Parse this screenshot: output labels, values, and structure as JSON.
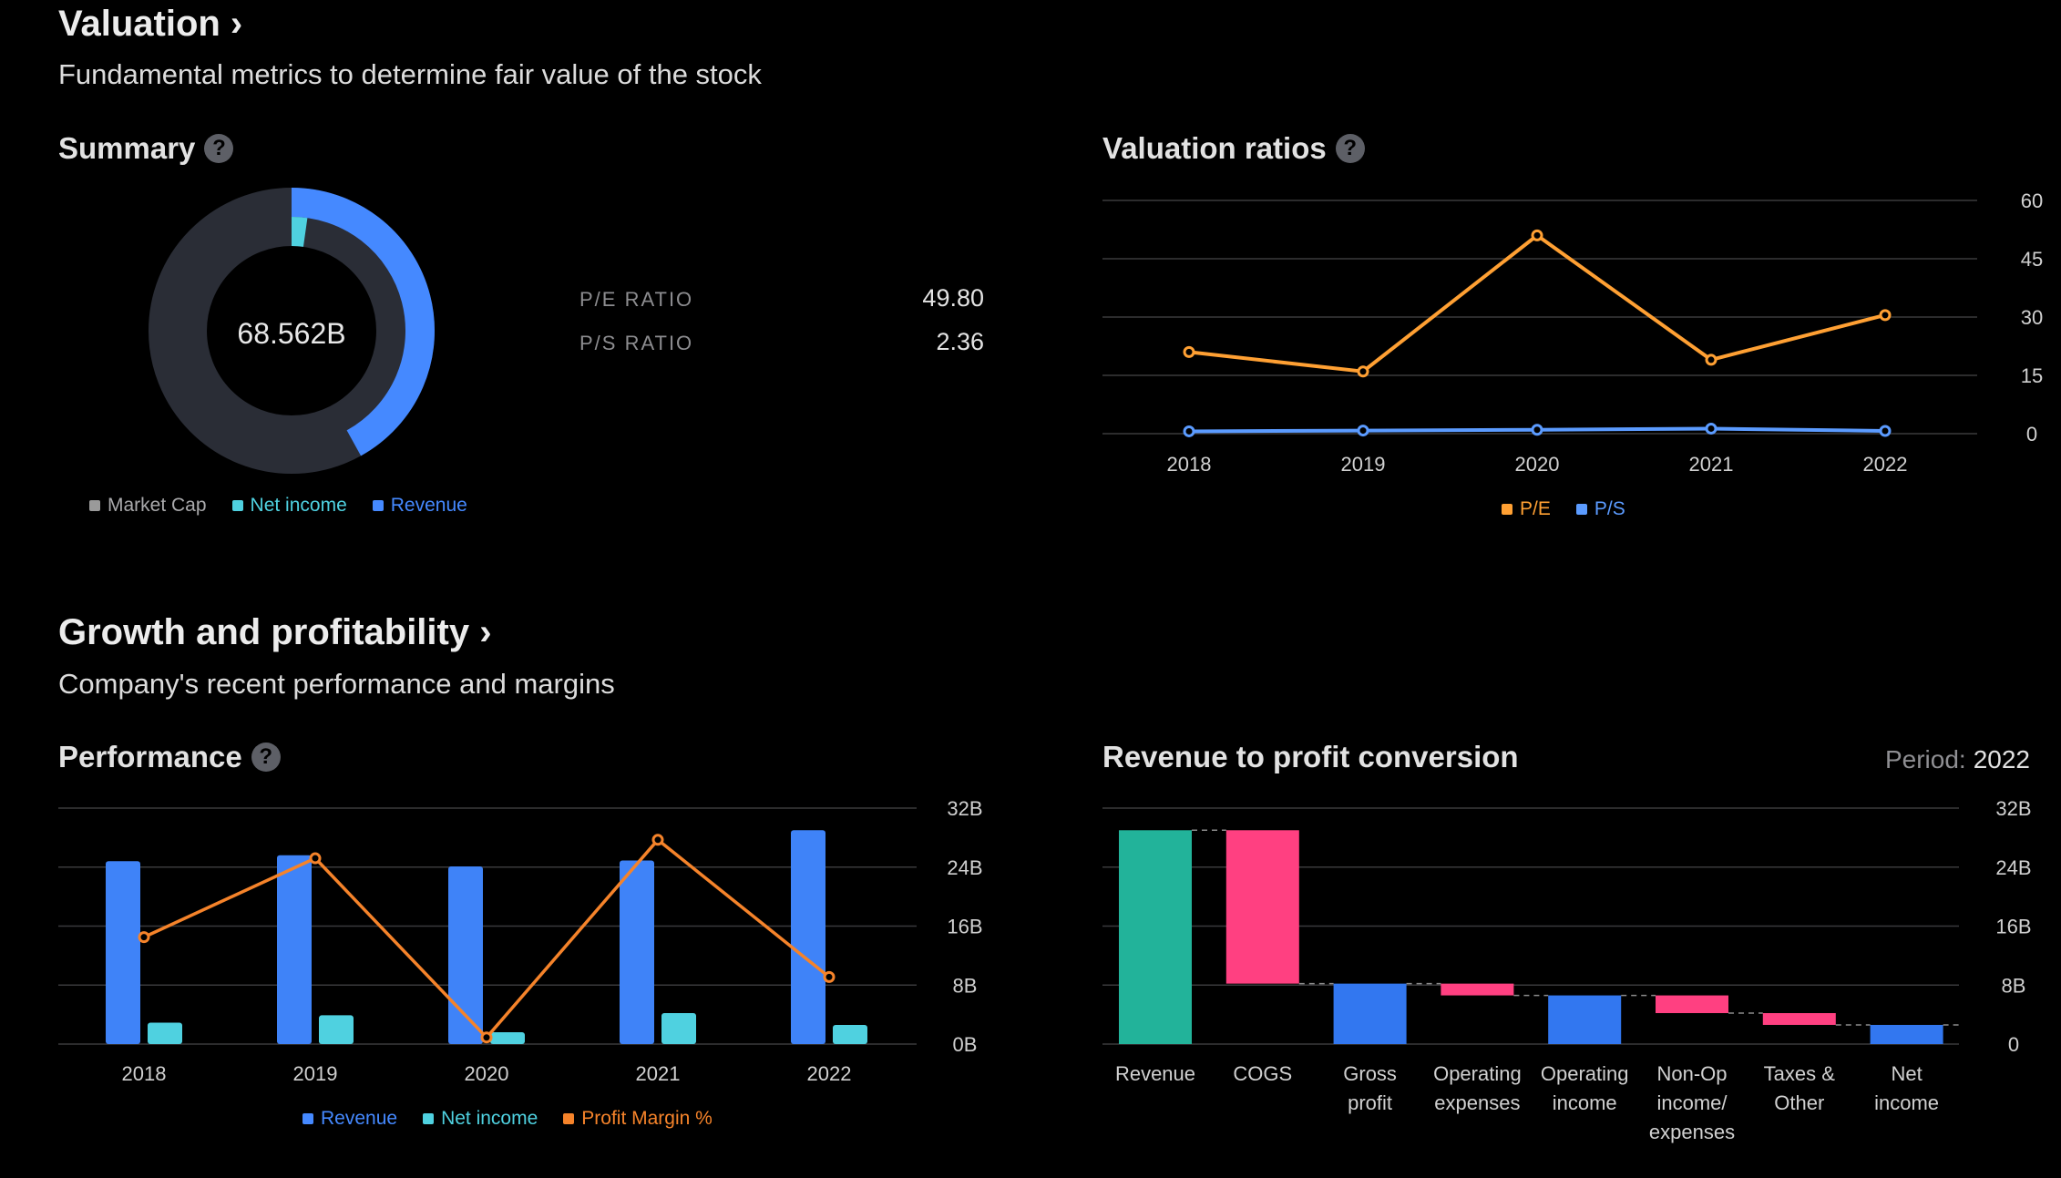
{
  "colors": {
    "market_cap": "#2a2d36",
    "revenue": "#4589ff",
    "revenue_bar": "#3f83f8",
    "net_income": "#4fd1e0",
    "pe": "#ffa033",
    "ps": "#5b9bff",
    "profit_margin": "#f5832a",
    "green": "#22b39a",
    "pink": "#ff4081",
    "grid": "#3a3a3c",
    "axis_text": "#d0d0d0"
  },
  "valuation": {
    "title": "Valuation ›",
    "subtitle": "Fundamental metrics to determine fair value of the stock"
  },
  "summary": {
    "title": "Summary",
    "help": "?",
    "center_value": "68.562B",
    "ratios": [
      {
        "label": "P/E RATIO",
        "value": "49.80"
      },
      {
        "label": "P/S RATIO",
        "value": "2.36"
      }
    ],
    "legend": [
      "Market Cap",
      "Net income",
      "Revenue"
    ]
  },
  "valuation_ratios": {
    "title": "Valuation ratios",
    "help": "?",
    "chart_data": {
      "type": "line",
      "x": [
        "2018",
        "2019",
        "2020",
        "2021",
        "2022"
      ],
      "series": [
        {
          "name": "P/E",
          "values": [
            21,
            16,
            51,
            19,
            30.5
          ]
        },
        {
          "name": "P/S",
          "values": [
            0.6,
            0.8,
            1.0,
            1.3,
            0.7
          ]
        }
      ],
      "ylim": [
        0,
        60
      ],
      "yticks": [
        "0",
        "15",
        "30",
        "45",
        "60"
      ]
    }
  },
  "growth": {
    "title": "Growth and profitability ›",
    "subtitle": "Company's recent performance and margins"
  },
  "performance": {
    "title": "Performance",
    "help": "?",
    "chart_data": {
      "type": "bar",
      "categories": [
        "2018",
        "2019",
        "2020",
        "2021",
        "2022"
      ],
      "series": [
        {
          "name": "Revenue",
          "values": [
            24.8,
            25.6,
            24.1,
            24.9,
            29.0
          ]
        },
        {
          "name": "Net income",
          "values": [
            2.9,
            3.9,
            1.6,
            4.2,
            2.6
          ]
        },
        {
          "name": "Profit Margin %",
          "values": [
            14.5,
            25.2,
            0.9,
            27.7,
            9.1
          ]
        }
      ],
      "ylim": [
        0,
        32
      ],
      "yticks": [
        "0B",
        "8B",
        "16B",
        "24B",
        "32B"
      ]
    }
  },
  "conversion": {
    "title": "Revenue to profit conversion",
    "period_label": "Period:",
    "period_value": "2022",
    "chart_data": {
      "type": "waterfall",
      "categories": [
        "Revenue",
        "COGS",
        "Gross profit",
        "Operating expenses",
        "Operating income",
        "Non-Op income/ expenses",
        "Taxes & Other",
        "Net income"
      ],
      "category_lines": [
        [
          "Revenue"
        ],
        [
          "COGS"
        ],
        [
          "Gross",
          "profit"
        ],
        [
          "Operating",
          "expenses"
        ],
        [
          "Operating",
          "income"
        ],
        [
          "Non-Op",
          "income/",
          "expenses"
        ],
        [
          "Taxes &",
          "Other"
        ],
        [
          "Net",
          "income"
        ]
      ],
      "ranges": [
        [
          0,
          29.0
        ],
        [
          8.2,
          29.0
        ],
        [
          0,
          8.2
        ],
        [
          6.6,
          8.2
        ],
        [
          0,
          6.6
        ],
        [
          4.2,
          6.6
        ],
        [
          2.6,
          4.2
        ],
        [
          0,
          2.6
        ]
      ],
      "kinds": [
        "total",
        "decrease",
        "subtotal",
        "decrease",
        "subtotal",
        "decrease",
        "decrease",
        "subtotal"
      ],
      "ylim": [
        0,
        32
      ],
      "yticks": [
        "0",
        "8B",
        "16B",
        "24B",
        "32B"
      ]
    }
  }
}
